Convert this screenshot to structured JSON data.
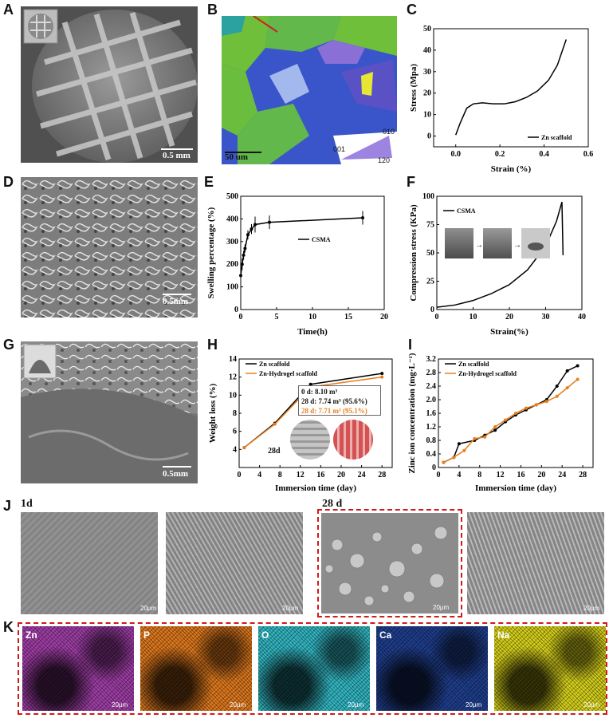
{
  "panels": {
    "A": "A",
    "B": "B",
    "C": "C",
    "D": "D",
    "E": "E",
    "F": "F",
    "G": "G",
    "H": "H",
    "I": "I",
    "J": "J",
    "K": "K"
  },
  "scale_labels": {
    "A": "0.5 mm",
    "B": "50 um",
    "D": "0.5mm",
    "G": "0.5mm",
    "J": "20μm",
    "K": "20μm"
  },
  "ebsd_key": {
    "c001": "001",
    "c010": "010",
    "c120": "120"
  },
  "sem_labels": {
    "j_1d": "1d",
    "j_28d": "28 d"
  },
  "map_labels": [
    "Zn",
    "P",
    "O",
    "Ca",
    "Na"
  ],
  "map_colors": [
    "#a13fa8",
    "#e07a1e",
    "#33b8c4",
    "#1f3f8f",
    "#d8d21c"
  ],
  "chart_data": [
    {
      "panel": "C",
      "type": "line",
      "xlabel": "Strain (%)",
      "ylabel": "Stress (Mpa)",
      "xlim": [
        -0.1,
        0.6
      ],
      "ylim": [
        -5,
        50
      ],
      "xticks": [
        "0.0",
        "0.2",
        "0.4",
        "0.6"
      ],
      "xtick_values": [
        0.0,
        0.2,
        0.4,
        0.6
      ],
      "yticks": [
        "0",
        "10",
        "20",
        "30",
        "40",
        "50"
      ],
      "ytick_values": [
        0,
        10,
        20,
        30,
        40,
        50
      ],
      "legend": "top-right-bottom",
      "series": [
        {
          "name": "Zn scaffold",
          "color": "#000000",
          "x": [
            0.0,
            0.02,
            0.05,
            0.08,
            0.12,
            0.17,
            0.22,
            0.27,
            0.32,
            0.37,
            0.42,
            0.46,
            0.5
          ],
          "y": [
            0.5,
            6,
            13,
            15,
            15.5,
            15,
            15,
            16,
            18,
            21,
            26,
            33,
            45
          ]
        }
      ]
    },
    {
      "panel": "E",
      "type": "line",
      "xlabel": "Time(h)",
      "ylabel": "Swelling percentage (%)",
      "xlim": [
        0,
        20
      ],
      "ylim": [
        0,
        500
      ],
      "xticks": [
        "0",
        "5",
        "10",
        "15",
        "20"
      ],
      "xtick_values": [
        0,
        5,
        10,
        15,
        20
      ],
      "yticks": [
        "0",
        "100",
        "200",
        "300",
        "400",
        "500"
      ],
      "ytick_values": [
        0,
        100,
        200,
        300,
        400,
        500
      ],
      "legend": "right",
      "series": [
        {
          "name": "CSMA",
          "color": "#000000",
          "x": [
            0,
            0.2,
            0.4,
            0.6,
            1,
            1.5,
            2,
            4,
            17
          ],
          "y": [
            150,
            200,
            240,
            270,
            330,
            355,
            375,
            385,
            405
          ],
          "err": [
            0,
            25,
            20,
            18,
            20,
            22,
            35,
            30,
            30
          ]
        }
      ]
    },
    {
      "panel": "F",
      "type": "line",
      "xlabel": "Strain(%)",
      "ylabel": "Compression stress (KPa)",
      "xlim": [
        0,
        40
      ],
      "ylim": [
        0,
        100
      ],
      "xticks": [
        "0",
        "10",
        "20",
        "30",
        "40"
      ],
      "xtick_values": [
        0,
        10,
        20,
        30,
        40
      ],
      "yticks": [
        "0",
        "25",
        "50",
        "75",
        "100"
      ],
      "ytick_values": [
        0,
        25,
        50,
        75,
        100
      ],
      "legend": "top-left",
      "series": [
        {
          "name": "CSMA",
          "color": "#000000",
          "x": [
            0,
            5,
            10,
            15,
            20,
            25,
            30,
            33,
            34.5,
            34.8
          ],
          "y": [
            2,
            4,
            8,
            14,
            22,
            35,
            56,
            78,
            95,
            48
          ]
        }
      ]
    },
    {
      "panel": "H",
      "type": "line",
      "xlabel": "Immersion time (day)",
      "ylabel": "Weight loss (%)",
      "xlim": [
        0,
        30
      ],
      "ylim": [
        2,
        14
      ],
      "xticks": [
        "0",
        "4",
        "8",
        "12",
        "16",
        "20",
        "24",
        "28"
      ],
      "xtick_values": [
        0,
        4,
        8,
        12,
        16,
        20,
        24,
        28
      ],
      "yticks": [
        "4",
        "6",
        "8",
        "10",
        "12",
        "14"
      ],
      "ytick_values": [
        4,
        6,
        8,
        10,
        12,
        14
      ],
      "legend": "top-left",
      "series": [
        {
          "name": "Zn scaffold",
          "color": "#000000",
          "x": [
            1,
            7,
            14,
            28
          ],
          "y": [
            4.2,
            6.9,
            11.2,
            12.4
          ]
        },
        {
          "name": "Zn-Hydrogel scaffold",
          "color": "#e87e1c",
          "x": [
            1,
            7,
            14,
            28
          ],
          "y": [
            4.2,
            6.8,
            10.9,
            12.0
          ]
        }
      ],
      "annotations": [
        "0 d: 8.10 m³",
        "28 d: 7.74 m³ (95.6%)",
        "28 d: 7.71 m³ (95.1%)"
      ],
      "inset_label": "28d"
    },
    {
      "panel": "I",
      "type": "line",
      "xlabel": "Immersion time (day)",
      "ylabel": "Zinc ion concentration (mg·L⁻¹)",
      "xlim": [
        0,
        30
      ],
      "ylim": [
        0,
        3.2
      ],
      "xticks": [
        "0",
        "4",
        "8",
        "12",
        "16",
        "20",
        "24",
        "28"
      ],
      "xtick_values": [
        0,
        4,
        8,
        12,
        16,
        20,
        24,
        28
      ],
      "yticks": [
        "0",
        "0.4",
        "0.8",
        "1.2",
        "1.6",
        "2.0",
        "2.4",
        "2.8",
        "3.2"
      ],
      "ytick_values": [
        0,
        0.4,
        0.8,
        1.2,
        1.6,
        2.0,
        2.4,
        2.8,
        3.2
      ],
      "legend": "top-left",
      "series": [
        {
          "name": "Zn scaffold",
          "color": "#000000",
          "x": [
            1,
            3,
            4,
            7,
            9,
            11,
            13,
            15,
            17,
            19,
            21,
            23,
            25,
            27
          ],
          "y": [
            0.15,
            0.3,
            0.7,
            0.8,
            0.95,
            1.1,
            1.35,
            1.55,
            1.7,
            1.85,
            2.0,
            2.4,
            2.85,
            3.0
          ]
        },
        {
          "name": "Zn-Hydrogel scaffold",
          "color": "#e87e1c",
          "x": [
            1,
            3,
            5,
            7,
            9,
            11,
            13,
            15,
            17,
            19,
            21,
            23,
            25,
            27
          ],
          "y": [
            0.15,
            0.3,
            0.5,
            0.85,
            0.9,
            1.2,
            1.4,
            1.6,
            1.75,
            1.85,
            1.95,
            2.1,
            2.35,
            2.6
          ]
        }
      ]
    }
  ]
}
